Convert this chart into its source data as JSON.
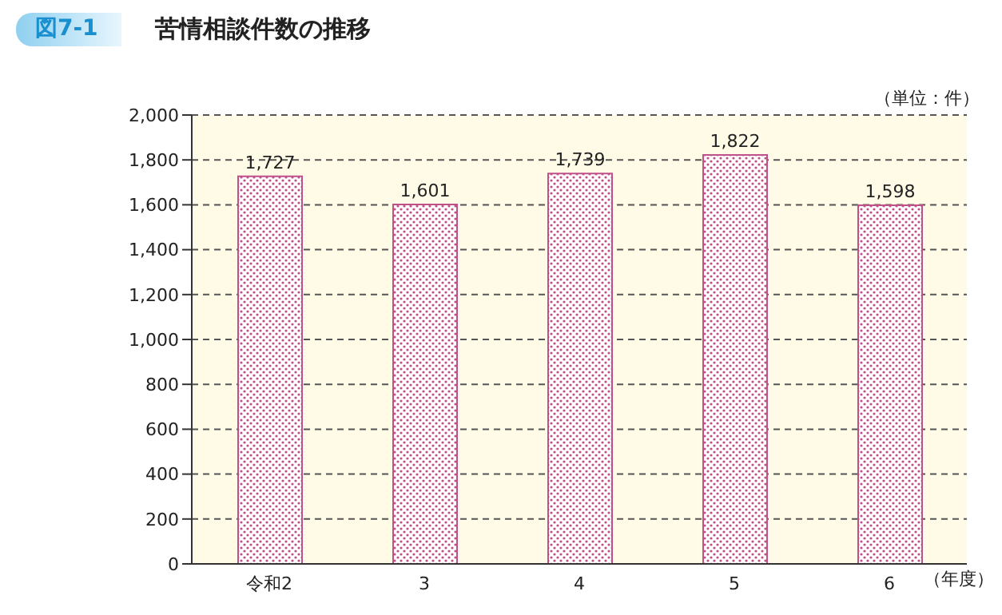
{
  "chart_data": {
    "type": "bar",
    "title": "苦情相談件数の推移",
    "annotations": [
      "図7-1"
    ],
    "ylabel": "（単位：件）",
    "xlabel": "（年度）",
    "categories": [
      "令和2",
      "3",
      "4",
      "5",
      "6"
    ],
    "values": [
      1727,
      1601,
      1739,
      1822,
      1598
    ],
    "value_labels": [
      "1,727",
      "1,601",
      "1,739",
      "1,822",
      "1,598"
    ],
    "color": "#c0508a",
    "ylim": [
      0,
      2000
    ],
    "yticks": [
      0,
      200,
      400,
      600,
      800,
      {
        "value": 1000,
        "label": "1,000"
      },
      {
        "value": 1200,
        "label": "1,200"
      },
      {
        "value": 1400,
        "label": "1,400"
      },
      {
        "value": 1600,
        "label": "1,600"
      },
      {
        "value": 1800,
        "label": "1,800"
      },
      {
        "value": 2000,
        "label": "2,000"
      }
    ],
    "grid": "y"
  }
}
